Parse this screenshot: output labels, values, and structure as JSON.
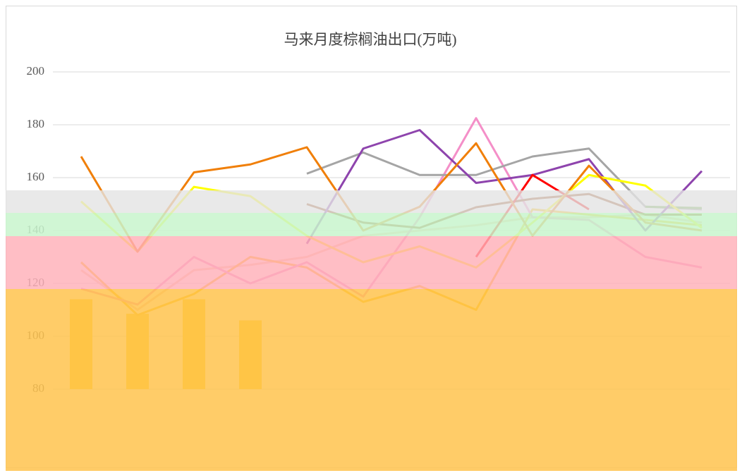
{
  "chart_data": {
    "type": "line",
    "title": "马来月度棕榈油出口(万吨)",
    "categories": [
      null,
      null,
      null,
      null,
      null,
      null,
      null,
      null,
      null,
      null,
      null,
      null
    ],
    "ylim": [
      80,
      200
    ],
    "yticks": [
      80,
      100,
      120,
      140,
      160,
      180,
      200
    ],
    "grid": true,
    "bars": {
      "color": "#ffd21f",
      "values": [
        114,
        108.5,
        114,
        106,
        null,
        null,
        null,
        null,
        null,
        null,
        null,
        null
      ]
    },
    "series": [
      {
        "color": "#f8cbad",
        "values": [
          125,
          110,
          125,
          127,
          130,
          138,
          140,
          142,
          145,
          145,
          146,
          143
        ]
      },
      {
        "color": "#ffc000",
        "values": [
          128,
          108,
          116,
          130,
          126,
          113,
          119,
          110,
          148,
          146,
          144,
          142
        ]
      },
      {
        "color": "#f48fc8",
        "values": [
          118,
          112,
          130,
          120,
          128,
          115,
          145,
          182.5,
          145,
          144,
          130,
          126
        ]
      },
      {
        "color": "#9c4a1a",
        "values": [
          null,
          null,
          null,
          null,
          150,
          143,
          141,
          148.8,
          152,
          153.8,
          146,
          146
        ]
      },
      {
        "color": "#a5a5a5",
        "values": [
          null,
          null,
          null,
          null,
          161.5,
          169.5,
          161,
          161,
          168,
          171,
          149,
          148
        ]
      },
      {
        "color": "#70ad47",
        "values": [
          null,
          null,
          null,
          null,
          null,
          null,
          null,
          null,
          null,
          null,
          149,
          148.5
        ]
      },
      {
        "color": "#8e44ad",
        "values": [
          null,
          null,
          null,
          null,
          135,
          171,
          178,
          158,
          161,
          167,
          140,
          162.5
        ]
      },
      {
        "color": "#ff0000",
        "values": [
          null,
          null,
          null,
          null,
          null,
          null,
          null,
          130,
          161,
          148,
          null,
          null
        ]
      },
      {
        "color": "#ffff00",
        "values": [
          151,
          132,
          156.5,
          153,
          138,
          128,
          134,
          126,
          143,
          161,
          157,
          141
        ]
      },
      {
        "color": "#f07f09",
        "values": [
          168,
          132,
          162,
          165,
          171.5,
          140,
          149,
          173,
          138,
          164.5,
          143,
          140
        ]
      }
    ]
  }
}
